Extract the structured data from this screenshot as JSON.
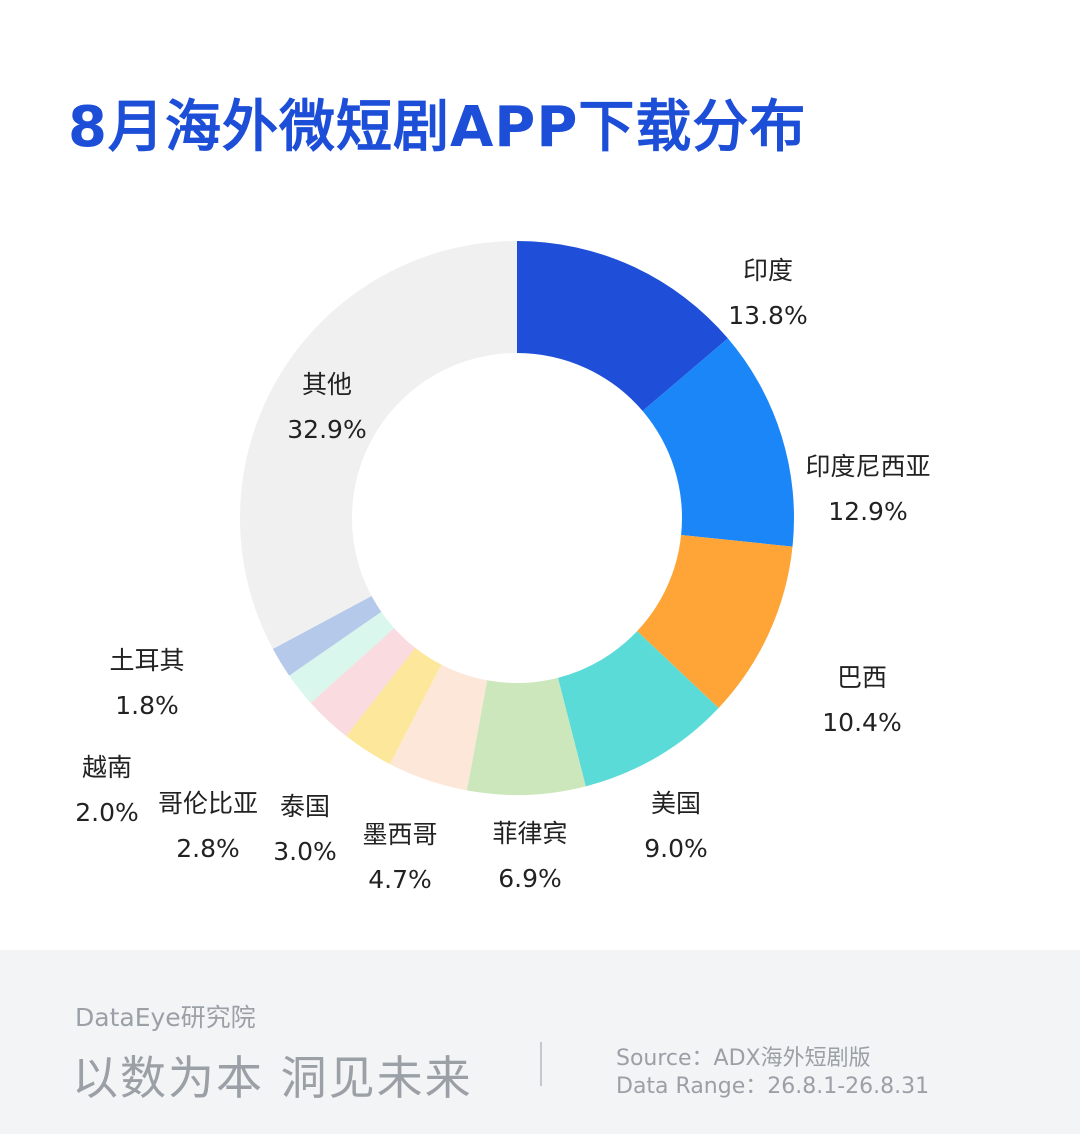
{
  "title": "8月海外微短剧APP下载分布",
  "chart_data": {
    "type": "pie",
    "title": "8月海外微短剧APP下载分布",
    "donut": true,
    "slices": [
      {
        "label": "印度",
        "value": 13.8,
        "value_label": "13.8%",
        "color": "#1f4fd8"
      },
      {
        "label": "印度尼西亚",
        "value": 12.9,
        "value_label": "12.9%",
        "color": "#1a86f7"
      },
      {
        "label": "巴西",
        "value": 10.4,
        "value_label": "10.4%",
        "color": "#ffa436"
      },
      {
        "label": "美国",
        "value": 9.0,
        "value_label": "9.0%",
        "color": "#5bdbd8"
      },
      {
        "label": "菲律宾",
        "value": 6.9,
        "value_label": "6.9%",
        "color": "#cbe7bb"
      },
      {
        "label": "墨西哥",
        "value": 4.7,
        "value_label": "4.7%",
        "color": "#fde7d9"
      },
      {
        "label": "泰国",
        "value": 3.0,
        "value_label": "3.0%",
        "color": "#fde79a"
      },
      {
        "label": "哥伦比亚",
        "value": 2.8,
        "value_label": "2.8%",
        "color": "#f9dbe0"
      },
      {
        "label": "越南",
        "value": 2.0,
        "value_label": "2.0%",
        "color": "#d9f7ec"
      },
      {
        "label": "土耳其",
        "value": 1.8,
        "value_label": "1.8%",
        "color": "#b5c9ea"
      },
      {
        "label": "其他",
        "value": 32.9,
        "value_label": "32.9%",
        "color": "#f0f0f0"
      }
    ]
  },
  "footer": {
    "brand": "DataEye研究院",
    "slogan": "以数为本 洞见未来",
    "source": "Source：ADX海外短剧版",
    "range": "Data Range：26.8.1-26.8.31"
  }
}
